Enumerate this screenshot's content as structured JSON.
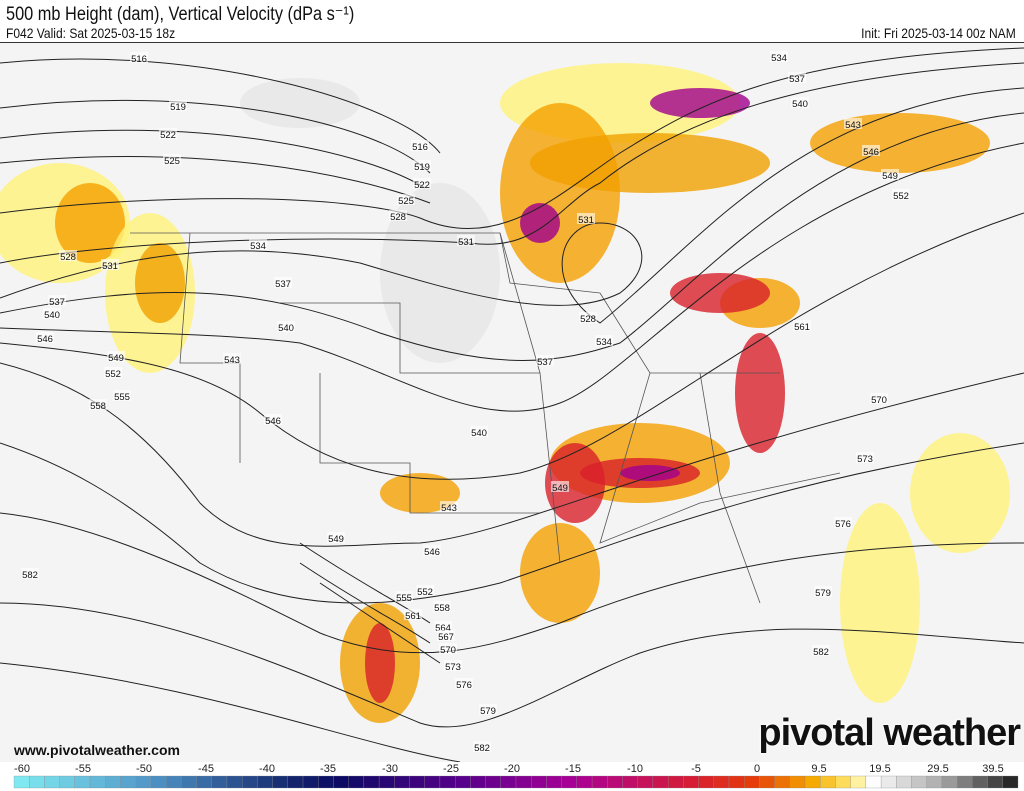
{
  "header": {
    "title": "500 mb Height (dam), Vertical Velocity (dPa s⁻¹)",
    "valid": "F042 Valid: Sat 2025-03-15 18z",
    "init": "Init: Fri 2025-03-14 00z NAM"
  },
  "footer": {
    "website": "www.pivotalweather.com",
    "logo": "pivotal weather"
  },
  "colorbar": {
    "labels": [
      "-60",
      "-55",
      "-50",
      "-45",
      "-40",
      "-35",
      "-30",
      "-25",
      "-20",
      "-15",
      "-10",
      "-5",
      "0",
      "9.5",
      "19.5",
      "29.5",
      "39.5"
    ],
    "colors": {
      "strong_ascent": "#7fe8f0",
      "mid": "#0a0a6a",
      "purple": "#a0008f",
      "red": "#d8202a",
      "orange": "#f5a000",
      "yellow": "#fff27a",
      "descent_max": "#2a2a2a"
    }
  },
  "contours": [
    "516",
    "519",
    "522",
    "525",
    "528",
    "531",
    "534",
    "537",
    "540",
    "546",
    "549",
    "552",
    "555",
    "558",
    "537",
    "540",
    "543",
    "546",
    "516",
    "519",
    "522",
    "525",
    "528",
    "531",
    "531",
    "528",
    "534",
    "537",
    "540",
    "543",
    "546",
    "549",
    "552",
    "555",
    "558",
    "561",
    "564",
    "567",
    "570",
    "573",
    "576",
    "579",
    "582",
    "582",
    "534",
    "537",
    "540",
    "543",
    "546",
    "549",
    "552",
    "561",
    "570",
    "573",
    "576",
    "579",
    "582",
    "549"
  ]
}
